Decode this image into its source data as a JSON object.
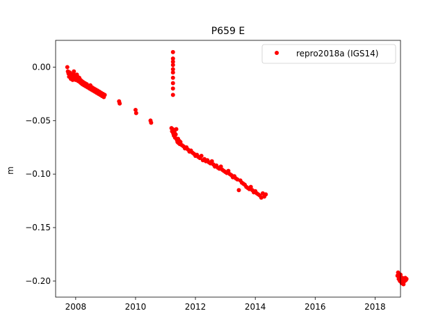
{
  "chart_data": {
    "type": "scatter",
    "title": "P659 E",
    "xlabel": "",
    "ylabel": "m",
    "xlim": [
      2007.33,
      2018.85
    ],
    "ylim": [
      -0.215,
      0.025
    ],
    "xticks": [
      2008,
      2010,
      2012,
      2014,
      2016,
      2018
    ],
    "xtick_labels": [
      "2008",
      "2010",
      "2012",
      "2014",
      "2016",
      "2018"
    ],
    "yticks": [
      0.0,
      -0.05,
      -0.1,
      -0.15,
      -0.2
    ],
    "ytick_labels": [
      "0.00",
      "−0.05",
      "−0.10",
      "−0.15",
      "−0.20"
    ],
    "grid": false,
    "legend_position": "top-right",
    "series": [
      {
        "name": "repro2018a (IGS14)",
        "color": "#ff0000",
        "marker": "circle",
        "x": [
          2007.72,
          2007.74,
          2007.76,
          2007.78,
          2007.8,
          2007.82,
          2007.84,
          2007.86,
          2007.88,
          2007.9,
          2007.92,
          2007.94,
          2007.96,
          2007.98,
          2008.0,
          2008.02,
          2008.04,
          2008.06,
          2008.08,
          2008.1,
          2008.12,
          2008.14,
          2008.16,
          2008.18,
          2008.2,
          2008.22,
          2008.25,
          2008.28,
          2008.31,
          2008.34,
          2008.37,
          2008.4,
          2008.43,
          2008.46,
          2008.49,
          2008.52,
          2008.55,
          2008.58,
          2008.61,
          2008.64,
          2008.67,
          2008.7,
          2008.73,
          2008.76,
          2008.79,
          2008.82,
          2008.85,
          2008.88,
          2008.91,
          2008.94,
          2008.97,
          2009.45,
          2009.47,
          2010.0,
          2010.02,
          2010.5,
          2010.52,
          2011.2,
          2011.22,
          2011.24,
          2011.26,
          2011.28,
          2011.3,
          2011.32,
          2011.34,
          2011.36,
          2011.38,
          2011.4,
          2011.42,
          2011.44,
          2011.46,
          2011.48,
          2011.5,
          2011.55,
          2011.6,
          2011.65,
          2011.7,
          2011.75,
          2011.8,
          2011.85,
          2011.9,
          2011.95,
          2012.0,
          2012.05,
          2012.1,
          2012.15,
          2012.2,
          2012.25,
          2012.3,
          2012.35,
          2012.4,
          2012.45,
          2012.5,
          2012.55,
          2012.6,
          2012.65,
          2012.7,
          2012.75,
          2012.8,
          2012.85,
          2012.9,
          2012.95,
          2013.0,
          2013.05,
          2013.1,
          2013.15,
          2013.2,
          2013.25,
          2013.3,
          2013.35,
          2013.4,
          2013.45,
          2013.5,
          2013.55,
          2013.6,
          2013.65,
          2013.7,
          2013.75,
          2013.8,
          2013.85,
          2013.9,
          2013.95,
          2014.0,
          2014.05,
          2014.1,
          2014.15,
          2014.2,
          2014.25,
          2014.3,
          2014.35,
          2011.25,
          2011.25,
          2011.25,
          2011.25,
          2011.25,
          2011.25,
          2011.25,
          2011.25,
          2011.25,
          2011.25,
          2018.75,
          2018.77,
          2018.79,
          2018.81,
          2018.83,
          2018.85,
          2018.87,
          2018.89,
          2018.91,
          2018.93,
          2018.95,
          2018.97,
          2018.99,
          2019.01,
          2019.03,
          2019.05
        ],
        "y": [
          0.0,
          -0.004,
          -0.006,
          -0.009,
          -0.005,
          -0.008,
          -0.011,
          -0.007,
          -0.01,
          -0.012,
          -0.006,
          -0.004,
          -0.009,
          -0.008,
          -0.012,
          -0.01,
          -0.007,
          -0.009,
          -0.013,
          -0.011,
          -0.01,
          -0.014,
          -0.012,
          -0.015,
          -0.013,
          -0.016,
          -0.014,
          -0.017,
          -0.015,
          -0.018,
          -0.016,
          -0.019,
          -0.018,
          -0.02,
          -0.017,
          -0.021,
          -0.019,
          -0.022,
          -0.02,
          -0.023,
          -0.021,
          -0.024,
          -0.022,
          -0.025,
          -0.023,
          -0.026,
          -0.024,
          -0.027,
          -0.025,
          -0.028,
          -0.026,
          -0.032,
          -0.034,
          -0.04,
          -0.043,
          -0.05,
          -0.052,
          -0.057,
          -0.06,
          -0.058,
          -0.062,
          -0.064,
          -0.061,
          -0.066,
          -0.063,
          -0.058,
          -0.068,
          -0.07,
          -0.067,
          -0.071,
          -0.069,
          -0.072,
          -0.07,
          -0.073,
          -0.074,
          -0.076,
          -0.075,
          -0.077,
          -0.079,
          -0.078,
          -0.08,
          -0.081,
          -0.083,
          -0.082,
          -0.084,
          -0.085,
          -0.083,
          -0.087,
          -0.086,
          -0.088,
          -0.087,
          -0.089,
          -0.09,
          -0.088,
          -0.091,
          -0.093,
          -0.092,
          -0.094,
          -0.095,
          -0.093,
          -0.096,
          -0.097,
          -0.098,
          -0.099,
          -0.097,
          -0.1,
          -0.101,
          -0.103,
          -0.102,
          -0.104,
          -0.105,
          -0.115,
          -0.106,
          -0.108,
          -0.109,
          -0.11,
          -0.112,
          -0.113,
          -0.114,
          -0.112,
          -0.115,
          -0.117,
          -0.116,
          -0.118,
          -0.119,
          -0.12,
          -0.122,
          -0.118,
          -0.121,
          -0.119,
          0.014,
          0.008,
          0.005,
          0.002,
          -0.002,
          -0.005,
          -0.01,
          -0.015,
          -0.02,
          -0.026,
          -0.195,
          -0.192,
          -0.198,
          -0.196,
          -0.2,
          -0.194,
          -0.199,
          -0.202,
          -0.197,
          -0.201,
          -0.203,
          -0.198,
          -0.2,
          -0.197,
          -0.199,
          -0.198
        ]
      }
    ]
  }
}
